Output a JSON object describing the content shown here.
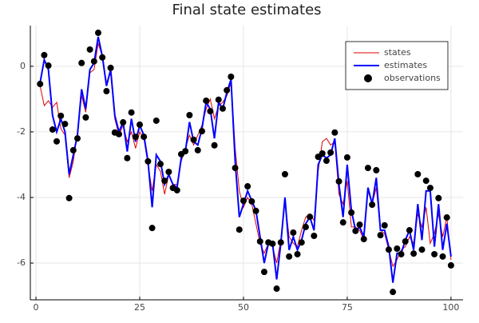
{
  "chart_data": {
    "type": "line",
    "title": "Final state estimates",
    "x": [
      1,
      2,
      3,
      4,
      5,
      6,
      7,
      8,
      9,
      10,
      11,
      12,
      13,
      14,
      15,
      16,
      17,
      18,
      19,
      20,
      21,
      22,
      23,
      24,
      25,
      26,
      27,
      28,
      29,
      30,
      31,
      32,
      33,
      34,
      35,
      36,
      37,
      38,
      39,
      40,
      41,
      42,
      43,
      44,
      45,
      46,
      47,
      48,
      49,
      50,
      51,
      52,
      53,
      54,
      55,
      56,
      57,
      58,
      59,
      60,
      61,
      62,
      63,
      64,
      65,
      66,
      67,
      68,
      69,
      70,
      71,
      72,
      73,
      74,
      75,
      76,
      77,
      78,
      79,
      80,
      81,
      82,
      83,
      84,
      85,
      86,
      87,
      88,
      89,
      90,
      91,
      92,
      93,
      94,
      95,
      96,
      97,
      98,
      99,
      100
    ],
    "series": [
      {
        "name": "states",
        "color": "#e00000",
        "mode": "line",
        "values": [
          -0.6,
          -1.2,
          -1.05,
          -1.25,
          -1.1,
          -1.9,
          -2.1,
          -3.4,
          -2.9,
          -2.0,
          -0.9,
          -1.4,
          -0.2,
          -0.1,
          0.7,
          0.3,
          -0.5,
          -0.2,
          -1.6,
          -2.1,
          -1.8,
          -2.3,
          -2.0,
          -2.5,
          -2.0,
          -2.2,
          -3.0,
          -3.8,
          -3.0,
          -3.2,
          -3.9,
          -3.3,
          -3.6,
          -3.6,
          -2.9,
          -2.5,
          -2.1,
          -2.4,
          -2.1,
          -1.8,
          -1.3,
          -1.0,
          -1.6,
          -1.2,
          -1.1,
          -0.9,
          -0.5,
          -2.5,
          -3.8,
          -4.3,
          -4.0,
          -4.2,
          -4.8,
          -5.4,
          -5.7,
          -5.4,
          -5.5,
          -6.0,
          -5.3,
          -4.1,
          -5.2,
          -5.4,
          -5.5,
          -5.0,
          -4.6,
          -4.5,
          -4.7,
          -3.2,
          -2.3,
          -2.2,
          -2.4,
          -2.3,
          -3.9,
          -4.2,
          -3.5,
          -4.9,
          -4.9,
          -5.0,
          -5.3,
          -3.8,
          -4.2,
          -3.7,
          -5.0,
          -5.1,
          -5.6,
          -6.1,
          -5.9,
          -5.6,
          -5.5,
          -5.2,
          -5.4,
          -4.5,
          -4.9,
          -4.3,
          -5.4,
          -5.1,
          -4.5,
          -5.2,
          -4.6,
          -5.9
        ]
      },
      {
        "name": "estimates",
        "color": "#0000ff",
        "mode": "line",
        "values": [
          -0.5,
          0.2,
          -0.1,
          -1.5,
          -2.0,
          -1.6,
          -2.0,
          -3.3,
          -2.7,
          -2.1,
          -0.7,
          -1.3,
          -0.1,
          0.1,
          0.9,
          0.3,
          -0.6,
          -0.1,
          -1.5,
          -2.0,
          -1.7,
          -2.6,
          -1.6,
          -2.3,
          -1.8,
          -2.1,
          -2.9,
          -4.3,
          -2.7,
          -2.9,
          -3.6,
          -3.3,
          -3.6,
          -3.7,
          -2.8,
          -2.6,
          -1.7,
          -2.3,
          -2.4,
          -1.9,
          -1.1,
          -1.3,
          -2.2,
          -1.1,
          -1.3,
          -0.8,
          -0.4,
          -2.9,
          -4.6,
          -4.2,
          -3.8,
          -4.1,
          -4.4,
          -5.2,
          -6.0,
          -5.4,
          -5.4,
          -6.5,
          -5.4,
          -4.0,
          -5.6,
          -5.2,
          -5.6,
          -5.3,
          -4.8,
          -4.6,
          -5.0,
          -3.0,
          -2.7,
          -2.8,
          -2.7,
          -2.2,
          -3.6,
          -4.6,
          -3.0,
          -4.4,
          -5.0,
          -4.9,
          -5.2,
          -3.7,
          -4.2,
          -3.4,
          -5.0,
          -5.0,
          -5.5,
          -6.6,
          -5.7,
          -5.7,
          -5.3,
          -5.0,
          -5.6,
          -4.2,
          -5.3,
          -3.8,
          -3.8,
          -5.5,
          -4.2,
          -5.6,
          -4.8,
          -5.8
        ]
      },
      {
        "name": "observations",
        "color": "#000000",
        "mode": "markers",
        "values": [
          -0.54,
          0.34,
          0.02,
          -1.93,
          -2.29,
          -1.51,
          -1.76,
          -4.02,
          -2.56,
          -2.2,
          0.1,
          -1.56,
          0.51,
          0.15,
          1.02,
          0.27,
          -0.76,
          -0.05,
          -2.02,
          -2.07,
          -1.71,
          -2.8,
          -1.41,
          -2.15,
          -1.78,
          -2.15,
          -2.9,
          -4.93,
          -1.66,
          -2.98,
          -3.49,
          -3.22,
          -3.71,
          -3.78,
          -2.68,
          -2.59,
          -1.49,
          -2.24,
          -2.56,
          -1.98,
          -1.05,
          -1.37,
          -2.41,
          -1.02,
          -1.29,
          -0.73,
          -0.32,
          -3.1,
          -4.98,
          -4.1,
          -3.66,
          -4.12,
          -4.41,
          -5.34,
          -6.27,
          -5.37,
          -5.41,
          -6.78,
          -5.37,
          -3.29,
          -5.8,
          -5.07,
          -5.73,
          -5.37,
          -4.9,
          -4.59,
          -5.17,
          -2.76,
          -2.66,
          -2.88,
          -2.63,
          -2.02,
          -3.51,
          -4.76,
          -2.78,
          -4.46,
          -5.02,
          -4.83,
          -5.27,
          -3.1,
          -4.22,
          -3.17,
          -5.15,
          -4.85,
          -5.59,
          -6.88,
          -5.56,
          -5.73,
          -5.34,
          -5.0,
          -5.71,
          -3.29,
          -5.59,
          -3.49,
          -3.71,
          -5.73,
          -4.02,
          -5.8,
          -4.61,
          -6.07
        ]
      }
    ],
    "xlim": [
      -1.35,
      102.9
    ],
    "ylim": [
      -7.12,
      1.24
    ],
    "xticks": [
      0,
      25,
      50,
      75,
      100
    ],
    "yticks": [
      -6,
      -4,
      -2,
      0
    ],
    "grid": true,
    "legend": "top-right"
  }
}
